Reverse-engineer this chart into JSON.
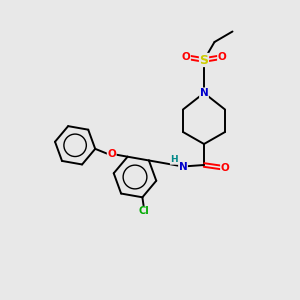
{
  "background_color": "#e8e8e8",
  "bond_color": "#000000",
  "atom_colors": {
    "N": "#0000cc",
    "O": "#ff0000",
    "S": "#cccc00",
    "Cl": "#00aa00",
    "C": "#000000",
    "H": "#008888"
  },
  "figsize": [
    3.0,
    3.0
  ],
  "dpi": 100,
  "lw": 1.4
}
